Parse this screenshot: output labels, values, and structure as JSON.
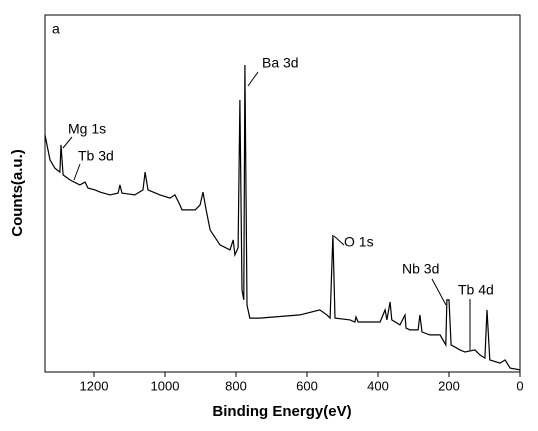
{
  "chart_data": {
    "type": "line",
    "panel_label": "a",
    "x_label": "Binding Energy(eV)",
    "y_label": "Counts(a.u.)",
    "xlim": [
      1338,
      0
    ],
    "ylim": [
      0,
      100
    ],
    "xticks": [
      1200,
      1000,
      800,
      600,
      400,
      200,
      0
    ],
    "annotations": [
      "Ba 3d",
      "Mg 1s",
      "Tb 3d",
      "O 1s",
      "Nb 3d",
      "Tb 4d"
    ],
    "series": [
      {
        "color": "#000000",
        "x": [
          1338,
          1324,
          1310,
          1296,
          1293,
          1287,
          1268,
          1240,
          1225,
          1217,
          1197,
          1183,
          1155,
          1132,
          1127,
          1121,
          1085,
          1062,
          1056,
          1048,
          1014,
          986,
          972,
          958,
          952,
          915,
          901,
          893,
          885,
          873,
          845,
          817,
          808,
          803,
          794,
          789,
          783,
          778,
          775,
          769,
          761,
          733,
          620,
          564,
          544,
          535,
          527,
          521,
          479,
          465,
          462,
          456,
          394,
          380,
          375,
          366,
          361,
          338,
          324,
          321,
          310,
          287,
          282,
          276,
          254,
          225,
          209,
          206,
          200,
          194,
          169,
          155,
          127,
          113,
          99,
          93,
          85,
          56,
          42,
          28,
          0
        ],
        "values": [
          66.4,
          59.4,
          57.1,
          56.0,
          63.6,
          55.2,
          53.8,
          52.4,
          53.2,
          51.5,
          51.0,
          50.4,
          49.6,
          50.1,
          52.4,
          50.1,
          49.6,
          51.0,
          56.0,
          51.0,
          49.6,
          48.7,
          49.6,
          46.8,
          45.4,
          45.4,
          46.8,
          50.4,
          45.9,
          39.8,
          35.6,
          34.2,
          37.0,
          32.8,
          34.8,
          76.2,
          23.0,
          20.2,
          86.0,
          18.8,
          15.1,
          15.1,
          16.0,
          17.4,
          16.0,
          15.1,
          38.4,
          15.1,
          14.6,
          14.0,
          15.4,
          14.0,
          14.0,
          17.4,
          14.6,
          19.6,
          14.6,
          13.2,
          16.0,
          12.3,
          11.8,
          11.8,
          16.0,
          11.2,
          10.4,
          10.4,
          7.6,
          20.2,
          20.2,
          7.6,
          6.2,
          5.6,
          6.2,
          4.8,
          3.9,
          17.4,
          3.4,
          2.5,
          3.4,
          1.1,
          0.6
        ]
      }
    ]
  }
}
